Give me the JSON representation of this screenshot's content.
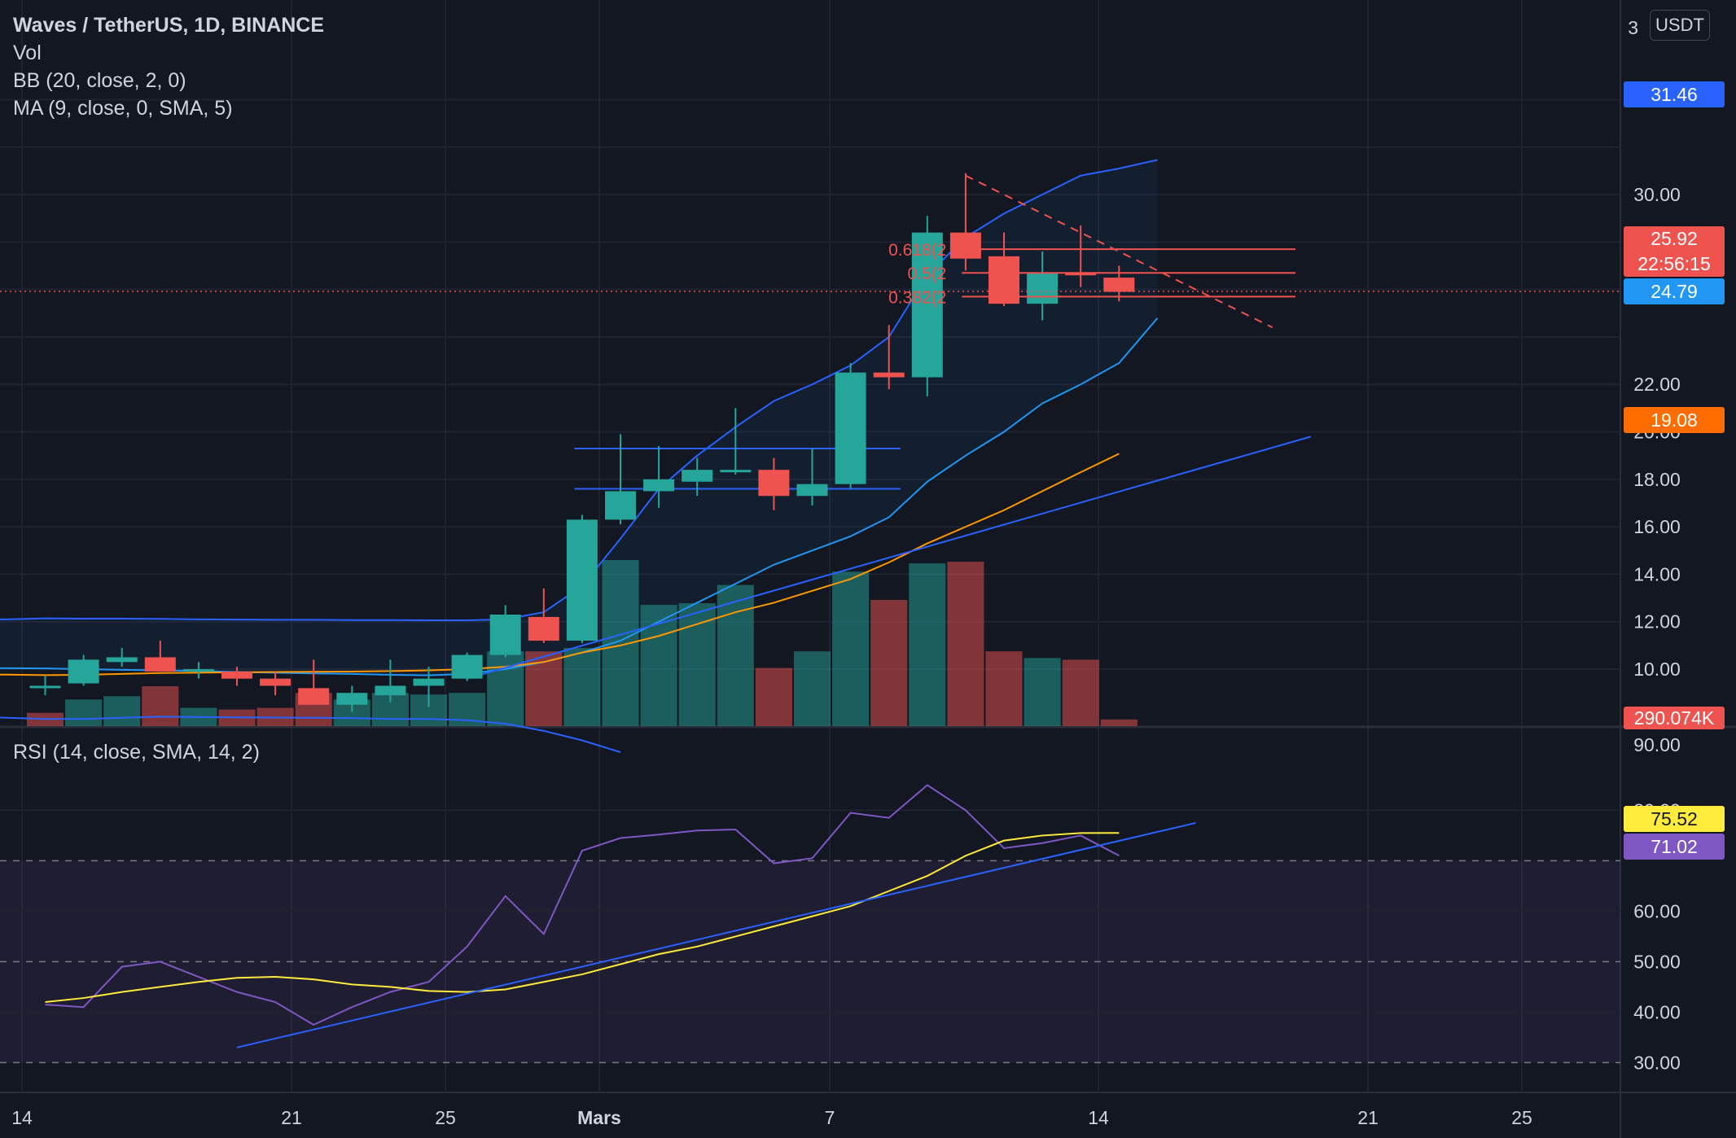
{
  "header": {
    "title": "Waves / TetherUS, 1D, BINANCE",
    "indicators": [
      "Vol",
      "BB (20, close, 2, 0)",
      "MA (9, close, 0, SMA, 5)"
    ],
    "currency_button": "USDT",
    "top_axis_label": "3"
  },
  "rsi_panel": {
    "label": "RSI (14, close, SMA, 14, 2)",
    "badges": {
      "rsi_ma": "75.52",
      "rsi": "71.02"
    }
  },
  "price_badges": {
    "bb_upper": "31.46",
    "last_price": "25.92",
    "countdown": "22:56:15",
    "bb_basis": "24.79",
    "ma": "19.08",
    "volume": "290.074K"
  },
  "fib_labels": [
    "0.618(2",
    "0.5(2",
    "0.382(2"
  ],
  "colors": {
    "background": "#131722",
    "up": "#26a69a",
    "down": "#ef5350",
    "bb": "#2962ff",
    "bb_basis": "#2196f3",
    "ma": "#ff9800",
    "rsi": "#7e57c2",
    "rsi_ma": "#ffeb3b",
    "trendline": "#2962ff"
  },
  "chart_data": [
    {
      "type": "candlestick",
      "title": "Waves / TetherUS, 1D, BINANCE",
      "x_tick_labels": [
        "14",
        "21",
        "25",
        "Mars",
        "7",
        "14",
        "21",
        "25"
      ],
      "y_tick_labels": [
        "30.00",
        "28.00",
        "22.00",
        "20.00",
        "18.00",
        "16.00",
        "14.00",
        "12.00",
        "10.00",
        "90.00"
      ],
      "ylim": [
        7.6,
        38.2
      ],
      "last_price": 25.92,
      "candles": [
        {
          "o": 9.3,
          "h": 9.7,
          "l": 8.9,
          "c": 9.3
        },
        {
          "o": 9.4,
          "h": 10.6,
          "l": 9.3,
          "c": 10.4
        },
        {
          "o": 10.3,
          "h": 10.9,
          "l": 10.1,
          "c": 10.5
        },
        {
          "o": 10.5,
          "h": 11.2,
          "l": 9.9,
          "c": 9.9
        },
        {
          "o": 9.9,
          "h": 10.3,
          "l": 9.6,
          "c": 10.0
        },
        {
          "o": 9.9,
          "h": 10.1,
          "l": 9.3,
          "c": 9.6
        },
        {
          "o": 9.6,
          "h": 9.9,
          "l": 8.9,
          "c": 9.3
        },
        {
          "o": 9.2,
          "h": 10.4,
          "l": 8.5,
          "c": 8.5
        },
        {
          "o": 8.5,
          "h": 9.3,
          "l": 8.2,
          "c": 9.0
        },
        {
          "o": 8.9,
          "h": 10.4,
          "l": 8.6,
          "c": 9.3
        },
        {
          "o": 9.3,
          "h": 10.1,
          "l": 8.4,
          "c": 9.6
        },
        {
          "o": 9.6,
          "h": 10.7,
          "l": 9.5,
          "c": 10.6
        },
        {
          "o": 10.6,
          "h": 12.7,
          "l": 10.5,
          "c": 12.3
        },
        {
          "o": 12.2,
          "h": 13.4,
          "l": 11.1,
          "c": 11.2
        },
        {
          "o": 11.2,
          "h": 16.5,
          "l": 11.1,
          "c": 16.3
        },
        {
          "o": 16.3,
          "h": 19.9,
          "l": 16.1,
          "c": 17.5
        },
        {
          "o": 17.5,
          "h": 19.4,
          "l": 16.8,
          "c": 18.0
        },
        {
          "o": 17.9,
          "h": 18.9,
          "l": 17.3,
          "c": 18.4
        },
        {
          "o": 18.4,
          "h": 21.0,
          "l": 18.2,
          "c": 18.4
        },
        {
          "o": 18.4,
          "h": 18.9,
          "l": 16.7,
          "c": 17.3
        },
        {
          "o": 17.3,
          "h": 19.3,
          "l": 16.9,
          "c": 17.8
        },
        {
          "o": 17.8,
          "h": 22.9,
          "l": 17.6,
          "c": 22.5
        },
        {
          "o": 22.5,
          "h": 24.5,
          "l": 21.8,
          "c": 22.3
        },
        {
          "o": 22.3,
          "h": 29.1,
          "l": 21.5,
          "c": 28.4
        },
        {
          "o": 28.4,
          "h": 30.9,
          "l": 26.8,
          "c": 27.3
        },
        {
          "o": 27.4,
          "h": 28.4,
          "l": 25.3,
          "c": 25.4
        },
        {
          "o": 25.4,
          "h": 27.6,
          "l": 24.7,
          "c": 26.7
        },
        {
          "o": 26.7,
          "h": 28.7,
          "l": 26.1,
          "c": 26.6
        },
        {
          "o": 26.5,
          "h": 27.0,
          "l": 25.5,
          "c": 25.9
        }
      ],
      "volume": {
        "last_label": "290.074K",
        "relative_values": [
          0.08,
          0.16,
          0.18,
          0.24,
          0.11,
          0.1,
          0.11,
          0.2,
          0.16,
          0.2,
          0.19,
          0.2,
          0.45,
          0.45,
          0.47,
          1.0,
          0.73,
          0.74,
          0.85,
          0.35,
          0.45,
          0.93,
          0.76,
          0.98,
          0.99,
          0.45,
          0.41,
          0.4,
          0.04
        ],
        "up_flags": [
          0,
          1,
          1,
          0,
          1,
          0,
          0,
          0,
          1,
          1,
          1,
          1,
          1,
          0,
          1,
          1,
          1,
          1,
          1,
          0,
          1,
          1,
          0,
          1,
          0,
          0,
          1,
          0,
          0
        ]
      },
      "series": [
        {
          "name": "BB (20, close, 2, 0)",
          "role": "upper",
          "start_index": -12,
          "values": [
            11.95,
            11.97,
            11.98,
            12.02,
            12.05,
            12.05,
            12.03,
            12.04,
            12.04,
            12.08,
            12.1,
            12.1,
            12.14,
            12.13,
            12.13,
            12.12,
            12.1,
            12.09,
            12.08,
            12.08,
            12.07,
            12.07,
            12.06,
            12.06,
            12.1,
            12.4,
            13.5,
            15.5,
            17.6,
            19.0,
            20.2,
            21.3,
            22.0,
            22.8,
            24.0,
            26.6,
            28.2,
            29.2,
            30.0,
            30.8,
            31.1,
            31.46
          ]
        },
        {
          "name": "BB (20, close, 2, 0)",
          "role": "basis",
          "start_index": -12,
          "values": [
            10.05,
            10.06,
            10.08,
            10.1,
            10.12,
            10.12,
            10.1,
            10.09,
            10.08,
            10.06,
            10.05,
            10.04,
            10.03,
            10.0,
            9.97,
            9.95,
            9.92,
            9.88,
            9.85,
            9.82,
            9.8,
            9.76,
            9.74,
            9.8,
            10.0,
            10.3,
            10.7,
            11.2,
            12.0,
            12.8,
            13.6,
            14.4,
            15.0,
            15.6,
            16.4,
            17.9,
            19.0,
            20.0,
            21.2,
            22.0,
            22.9,
            24.79
          ]
        },
        {
          "name": "BB (20, close, 2, 0)",
          "role": "lower",
          "start_index": -12,
          "values": [
            8.2,
            8.25,
            8.3,
            8.35,
            8.4,
            8.45,
            8.4,
            8.35,
            8.3,
            8.2,
            8.0,
            7.95,
            7.9,
            7.9,
            7.95,
            8.0,
            7.98,
            7.97,
            7.96,
            7.95,
            7.94,
            7.9,
            7.9,
            7.85,
            7.7,
            7.4,
            7.0,
            6.5
          ]
        },
        {
          "name": "MA (9, close, 0, SMA, 5)",
          "start_index": -12,
          "values": [
            9.7,
            9.72,
            9.74,
            9.77,
            9.8,
            9.82,
            9.83,
            9.82,
            9.81,
            9.8,
            9.78,
            9.77,
            9.75,
            9.76,
            9.8,
            9.84,
            9.85,
            9.87,
            9.88,
            9.89,
            9.9,
            9.92,
            9.95,
            10.0,
            10.1,
            10.3,
            10.7,
            11.0,
            11.4,
            11.9,
            12.4,
            12.8,
            13.3,
            13.8,
            14.5,
            15.3,
            16.0,
            16.7,
            17.5,
            18.3,
            19.08
          ]
        }
      ],
      "horizontal_levels": [
        {
          "label": "resistance",
          "value": 19.3
        },
        {
          "label": "support",
          "value": 17.6
        }
      ],
      "trendline": {
        "from": {
          "bar": 11,
          "value": 9.6
        },
        "to": {
          "bar": 33,
          "value": 19.8
        }
      },
      "fibonacci": {
        "levels": [
          {
            "ratio": "0.618",
            "value": 27.7
          },
          {
            "ratio": "0.5",
            "value": 26.7
          },
          {
            "ratio": "0.382",
            "value": 25.7
          }
        ]
      },
      "projection": {
        "from": {
          "bar": 24,
          "value": 30.8
        },
        "to": {
          "bar": 32,
          "value": 24.4
        }
      }
    },
    {
      "type": "line",
      "title": "RSI (14, close, SMA, 14, 2)",
      "y_tick_labels": [
        "90.00",
        "80.00",
        "60.00",
        "50.00",
        "40.00",
        "30.00"
      ],
      "ylim": [
        24.1,
        96.2
      ],
      "bands": {
        "upper": 70,
        "middle": 50,
        "lower": 30
      },
      "series": [
        {
          "name": "RSI",
          "values": [
            41.5,
            41.0,
            49.0,
            50.0,
            47.0,
            44.0,
            42.0,
            37.5,
            41.0,
            44.0,
            46.0,
            53.0,
            63.0,
            55.5,
            72.0,
            74.5,
            75.2,
            76.0,
            76.2,
            69.5,
            70.5,
            79.5,
            78.5,
            85.0,
            80.0,
            72.5,
            73.5,
            75.0,
            71.02
          ]
        },
        {
          "name": "RSI MA",
          "values": [
            42.0,
            42.8,
            44.0,
            45.0,
            46.0,
            46.8,
            47.0,
            46.5,
            45.5,
            45.0,
            44.2,
            44.0,
            44.5,
            46.0,
            47.5,
            49.5,
            51.5,
            53.0,
            55.0,
            57.0,
            59.0,
            61.0,
            64.0,
            67.0,
            71.0,
            74.0,
            75.0,
            75.5,
            75.52
          ]
        }
      ],
      "trendline": {
        "from": {
          "bar": 5,
          "value": 33.0
        },
        "to": {
          "bar": 30,
          "value": 77.5
        }
      }
    }
  ]
}
